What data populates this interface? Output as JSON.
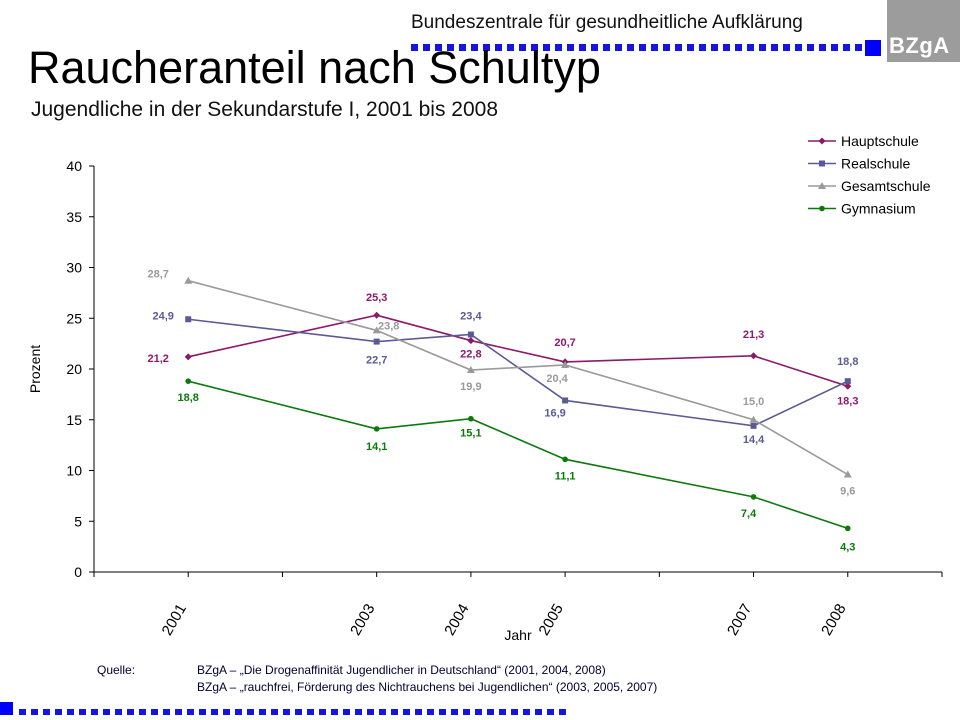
{
  "header": {
    "organization": "Bundeszentrale für gesundheitliche Aufklärung",
    "logo_text": "BZgA",
    "title": "Raucheranteil nach Schultyp",
    "subtitle": "Jugendliche in der Sekundarstufe I, 2001 bis 2008"
  },
  "source": {
    "label": "Quelle:",
    "lines": [
      "BZgA – „Die Drogenaffinität Jugendlicher in Deutschland“ (2001, 2004, 2008)",
      "BZgA – „rauchfrei, Förderung des Nichtrauchens bei Jugendlichen“ (2003, 2005, 2007)"
    ]
  },
  "colors": {
    "accent_blue": "#0000ff",
    "logo_gray": "#9c9c9c"
  },
  "chart_data": {
    "type": "line",
    "xlabel": "Jahr",
    "ylabel": "Prozent",
    "ylim": [
      0,
      40
    ],
    "yticks": [
      0,
      5,
      10,
      15,
      20,
      25,
      30,
      35,
      40
    ],
    "x_axis_range": [
      2000,
      2009
    ],
    "categories": [
      "2001",
      "2003",
      "2004",
      "2005",
      "2007",
      "2008"
    ],
    "x": [
      2001,
      2003,
      2004,
      2005,
      2007,
      2008
    ],
    "grid": false,
    "legend_position": "top-right",
    "series": [
      {
        "name": "Hauptschule",
        "color": "#8b1a6b",
        "marker": "diamond",
        "values": [
          21.2,
          25.3,
          22.8,
          20.7,
          21.3,
          18.3
        ],
        "labels": [
          "21,2",
          "25,3",
          "22,8",
          "20,7",
          "21,3",
          "18,3"
        ]
      },
      {
        "name": "Realschule",
        "color": "#5a5a96",
        "marker": "square",
        "values": [
          24.9,
          22.7,
          23.4,
          16.9,
          14.4,
          18.8
        ],
        "labels": [
          "24,9",
          "22,7",
          "23,4",
          "16,9",
          "14,4",
          "18,8"
        ]
      },
      {
        "name": "Gesamtschule",
        "color": "#9a9a9a",
        "marker": "triangle",
        "values": [
          28.7,
          23.8,
          19.9,
          20.4,
          15.0,
          9.6
        ],
        "labels": [
          "28,7",
          "23,8",
          "19,9",
          "20,4",
          "15,0",
          "9,6"
        ]
      },
      {
        "name": "Gymnasium",
        "color": "#0b7a0b",
        "marker": "circle",
        "values": [
          18.8,
          14.1,
          15.1,
          11.1,
          7.4,
          4.3
        ],
        "labels": [
          "18,8",
          "14,1",
          "15,1",
          "11,1",
          "7,4",
          "4,3"
        ]
      }
    ]
  }
}
